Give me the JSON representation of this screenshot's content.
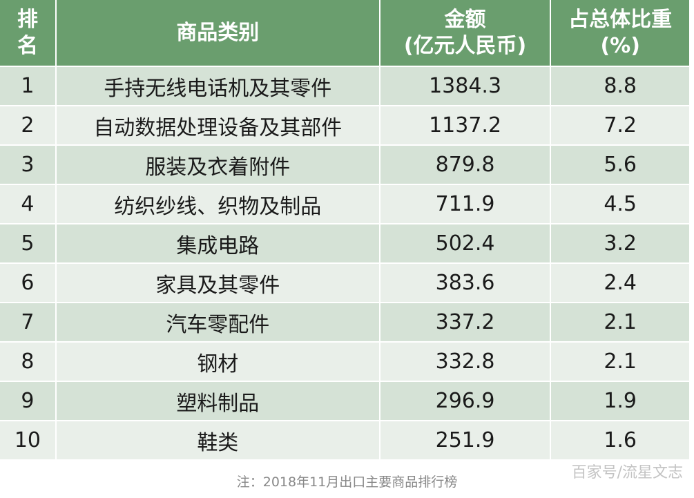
{
  "table": {
    "headers": [
      "排\n名",
      "商品类别",
      "金额\n(亿元人民币)",
      "占总体比重\n(%)"
    ],
    "rows": [
      [
        "1",
        "手持无线电话机及其零件",
        "1384.3",
        "8.8"
      ],
      [
        "2",
        "自动数据处理设备及其部件",
        "1137.2",
        "7.2"
      ],
      [
        "3",
        "服装及衣着附件",
        "879.8",
        "5.6"
      ],
      [
        "4",
        "纺织纱线、织物及制品",
        "711.9",
        "4.5"
      ],
      [
        "5",
        "集成电路",
        "502.4",
        "3.2"
      ],
      [
        "6",
        "家具及其零件",
        "383.6",
        "2.4"
      ],
      [
        "7",
        "汽车零配件",
        "337.2",
        "2.1"
      ],
      [
        "8",
        "钢材",
        "332.8",
        "2.1"
      ],
      [
        "9",
        "塑料制品",
        "296.9",
        "1.9"
      ],
      [
        "10",
        "鞋类",
        "251.9",
        "1.6"
      ]
    ]
  },
  "caption": "注：2018年11月出口主要商品排行榜",
  "watermark": "百家号/流星文志",
  "colors": {
    "header": "#6a9e6e",
    "row_odd": "#d5e2d6",
    "row_even": "#e9efe9"
  }
}
